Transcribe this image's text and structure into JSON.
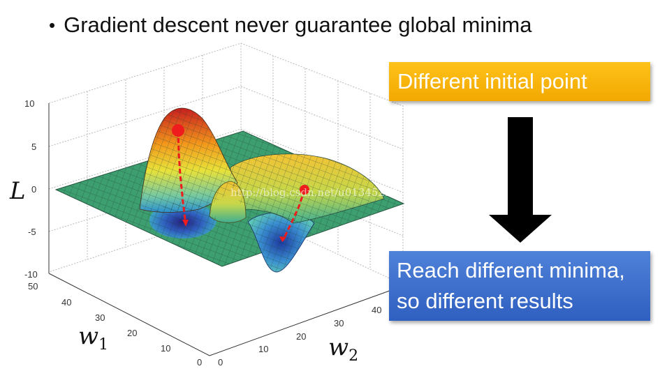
{
  "bullet": {
    "symbol": "•",
    "text": "Gradient descent never guarantee global minima"
  },
  "callouts": {
    "initial_point": "Different initial point",
    "results_line1": "Reach different minima,",
    "results_line2": "so different results"
  },
  "axes": {
    "z_label": "L",
    "w1_label": "w",
    "w1_sub": "1",
    "w2_label": "w",
    "w2_sub": "2",
    "z_ticks": [
      "10",
      "5",
      "0",
      "-5",
      "-10"
    ],
    "w1_ticks": [
      "50",
      "40",
      "30",
      "20",
      "10",
      "0"
    ],
    "w2_ticks": [
      "0",
      "10",
      "20",
      "30",
      "40"
    ]
  },
  "watermark": "http://blog.csdn.net/u013452217",
  "colors": {
    "initial_box": "#f5b400",
    "results_box": "#3b6cc9",
    "path": "#ee1c1c",
    "arrow": "#000000"
  }
}
